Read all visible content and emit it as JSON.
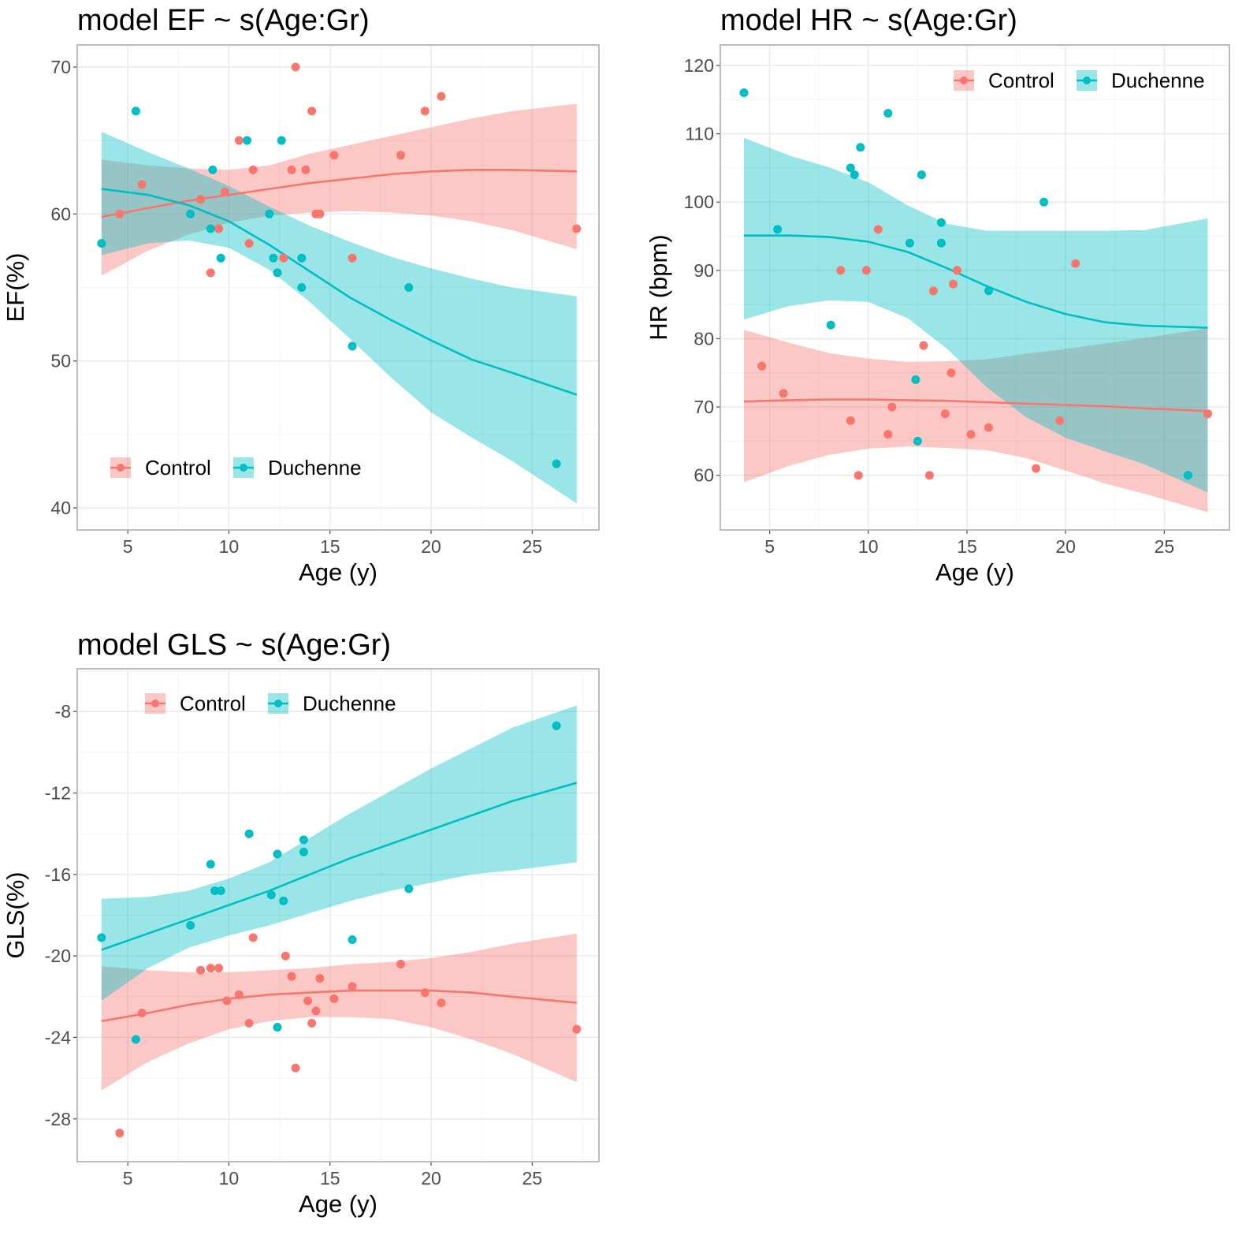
{
  "colors": {
    "control": "#F8766D",
    "duchenne": "#00BFC4",
    "overlap_point": "#938a86"
  },
  "legend": {
    "items": [
      "Control",
      "Duchenne"
    ]
  },
  "chart_data": [
    {
      "id": "ef",
      "type": "scatter",
      "title": "model EF ~ s(Age:Gr)",
      "xlabel": "Age (y)",
      "ylabel": "EF(%)",
      "xlim": [
        2.5,
        28.3
      ],
      "ylim": [
        38.5,
        71.5
      ],
      "xticks": [
        5,
        10,
        15,
        20,
        25
      ],
      "yticks": [
        40,
        50,
        60,
        70
      ],
      "grid": true,
      "legend_position": "bottom-left",
      "series": [
        {
          "name": "Control",
          "points": [
            [
              4.6,
              60
            ],
            [
              5.7,
              62
            ],
            [
              8.6,
              61
            ],
            [
              9.1,
              56
            ],
            [
              9.5,
              59
            ],
            [
              9.8,
              61.5
            ],
            [
              10.5,
              65
            ],
            [
              11,
              58
            ],
            [
              11.2,
              63
            ],
            [
              12.7,
              57
            ],
            [
              13.1,
              63
            ],
            [
              13.3,
              70
            ],
            [
              13.8,
              63
            ],
            [
              14.1,
              67
            ],
            [
              14.3,
              60
            ],
            [
              14.5,
              60
            ],
            [
              15.2,
              64
            ],
            [
              16.1,
              57
            ],
            [
              18.5,
              64
            ],
            [
              19.7,
              67
            ],
            [
              20.5,
              68
            ],
            [
              27.2,
              59
            ]
          ],
          "fit": {
            "x": [
              3.7,
              6,
              8,
              10,
              12,
              14,
              16,
              18,
              20,
              22,
              24,
              27.2
            ],
            "y": [
              59.8,
              60.4,
              60.9,
              61.3,
              61.7,
              62.1,
              62.4,
              62.7,
              62.9,
              63,
              63,
              62.9
            ]
          },
          "ci": {
            "x": [
              3.7,
              6,
              8,
              10,
              12,
              14,
              16,
              18,
              20,
              22,
              24,
              27.2
            ],
            "lower": [
              55.8,
              57.5,
              58.6,
              59.4,
              59.9,
              60.1,
              60.2,
              60.1,
              59.9,
              59.5,
              58.9,
              57.6
            ],
            "upper": [
              63.7,
              63.3,
              63.1,
              63,
              63.3,
              64.1,
              64.7,
              65.3,
              65.9,
              66.5,
              67,
              67.5
            ]
          }
        },
        {
          "name": "Duchenne",
          "points": [
            [
              3.7,
              58
            ],
            [
              5.4,
              67
            ],
            [
              8.1,
              60
            ],
            [
              9.1,
              59
            ],
            [
              9.2,
              63
            ],
            [
              9.6,
              57
            ],
            [
              10.9,
              65
            ],
            [
              12,
              60
            ],
            [
              12.2,
              57
            ],
            [
              12.4,
              56
            ],
            [
              12.6,
              65
            ],
            [
              13.6,
              57
            ],
            [
              13.6,
              55
            ],
            [
              16.1,
              51
            ],
            [
              18.9,
              55
            ],
            [
              26.2,
              43
            ]
          ],
          "fit": {
            "x": [
              3.7,
              6,
              8,
              10,
              12,
              14,
              16,
              18,
              20,
              22,
              24,
              27.2
            ],
            "y": [
              61.7,
              61.3,
              60.6,
              59.5,
              57.9,
              56.1,
              54.3,
              52.8,
              51.4,
              50.1,
              49.2,
              47.7
            ]
          },
          "ci": {
            "x": [
              3.7,
              6,
              8,
              10,
              12,
              14,
              16,
              18,
              20,
              22,
              24,
              27.2
            ],
            "lower": [
              57.2,
              58,
              58.2,
              57.7,
              56.2,
              54,
              51.5,
              48.9,
              46.5,
              44.8,
              43.2,
              40.3
            ],
            "upper": [
              65.6,
              64.2,
              63.1,
              61.9,
              60.5,
              59.2,
              58.1,
              57.1,
              56.3,
              55.6,
              55,
              54.4
            ]
          }
        }
      ]
    },
    {
      "id": "hr",
      "type": "scatter",
      "title": "model HR ~ s(Age:Gr)",
      "xlabel": "Age (y)",
      "ylabel": "HR (bpm)",
      "xlim": [
        2.5,
        28.3
      ],
      "ylim": [
        52,
        123
      ],
      "xticks": [
        5,
        10,
        15,
        20,
        25
      ],
      "yticks": [
        60,
        70,
        80,
        90,
        100,
        110,
        120
      ],
      "grid": true,
      "legend_position": "top-right",
      "series": [
        {
          "name": "Control",
          "points": [
            [
              4.6,
              76
            ],
            [
              5.7,
              72
            ],
            [
              8.6,
              90
            ],
            [
              9.1,
              68
            ],
            [
              9.5,
              60
            ],
            [
              9.9,
              90
            ],
            [
              10.5,
              96
            ],
            [
              11,
              66
            ],
            [
              11.2,
              70
            ],
            [
              12.8,
              79
            ],
            [
              13.1,
              60
            ],
            [
              13.3,
              87
            ],
            [
              13.9,
              69
            ],
            [
              14.2,
              75
            ],
            [
              14.3,
              88
            ],
            [
              14.5,
              90
            ],
            [
              15.2,
              66
            ],
            [
              16.1,
              67
            ],
            [
              18.5,
              61
            ],
            [
              19.7,
              68
            ],
            [
              20.5,
              91
            ],
            [
              27.2,
              69
            ]
          ],
          "fit": {
            "x": [
              3.7,
              6,
              8,
              10,
              12,
              14,
              16,
              18,
              20,
              22,
              24,
              27.2
            ],
            "y": [
              70.8,
              71,
              71.1,
              71.1,
              71,
              70.9,
              70.7,
              70.5,
              70.3,
              70.1,
              69.8,
              69.4
            ]
          },
          "ci": {
            "x": [
              3.7,
              6,
              8,
              10,
              12,
              14,
              16,
              18,
              20,
              22,
              24,
              27.2
            ],
            "lower": [
              59,
              61.4,
              63,
              63.9,
              64.2,
              64,
              63.7,
              62.5,
              60.7,
              58.8,
              57.3,
              54.6
            ],
            "upper": [
              81.3,
              79.4,
              77.9,
              77.1,
              76.6,
              76.7,
              77,
              77.8,
              78.5,
              79.3,
              80.1,
              81.5
            ]
          }
        },
        {
          "name": "Duchenne",
          "points": [
            [
              3.7,
              116
            ],
            [
              5.4,
              96
            ],
            [
              8.1,
              82
            ],
            [
              9.1,
              105
            ],
            [
              9.3,
              104
            ],
            [
              9.6,
              108
            ],
            [
              11,
              113
            ],
            [
              12.1,
              94
            ],
            [
              12.4,
              74
            ],
            [
              12.5,
              65
            ],
            [
              12.7,
              104
            ],
            [
              13.7,
              97
            ],
            [
              13.7,
              94
            ],
            [
              16.1,
              87
            ],
            [
              18.9,
              100
            ],
            [
              26.2,
              60
            ]
          ],
          "fit": {
            "x": [
              3.7,
              6,
              8,
              10,
              12,
              14,
              16,
              18,
              20,
              22,
              24,
              27.2
            ],
            "y": [
              95.1,
              95.1,
              94.9,
              94.2,
              92.7,
              90.3,
              87.7,
              85.4,
              83.6,
              82.4,
              81.9,
              81.6
            ]
          },
          "ci": {
            "x": [
              3.7,
              6,
              8,
              10,
              12,
              14,
              16,
              18,
              20,
              22,
              24,
              27.2
            ],
            "lower": [
              82.8,
              84.8,
              85.6,
              85.4,
              83,
              78.5,
              72.9,
              68.5,
              65.5,
              63.5,
              61.6,
              57.5
            ],
            "upper": [
              109.4,
              106.8,
              105.1,
              102.9,
              99.5,
              96.8,
              95.8,
              95.8,
              95.8,
              95.8,
              95.9,
              97.6
            ]
          }
        }
      ]
    },
    {
      "id": "gls",
      "type": "scatter",
      "title": "model GLS ~ s(Age:Gr)",
      "xlabel": "Age (y)",
      "ylabel": "GLS(%)",
      "xlim": [
        2.5,
        28.3
      ],
      "ylim": [
        -30.1,
        -5.9
      ],
      "xticks": [
        5,
        10,
        15,
        20,
        25
      ],
      "yticks": [
        -8,
        -12,
        -16,
        -20,
        -24,
        -28
      ],
      "grid": true,
      "legend_position": "top-left",
      "series": [
        {
          "name": "Control",
          "points": [
            [
              4.6,
              -28.7
            ],
            [
              5.7,
              -22.8
            ],
            [
              8.6,
              -20.7
            ],
            [
              9.1,
              -20.6
            ],
            [
              9.5,
              -20.6
            ],
            [
              9.9,
              -22.2
            ],
            [
              10.5,
              -21.9
            ],
            [
              11,
              -23.3
            ],
            [
              11.2,
              -19.1
            ],
            [
              12.8,
              -20
            ],
            [
              13.1,
              -21
            ],
            [
              13.3,
              -25.5
            ],
            [
              13.9,
              -22.2
            ],
            [
              14.1,
              -23.3
            ],
            [
              14.3,
              -22.7
            ],
            [
              14.5,
              -21.1
            ],
            [
              15.2,
              -22.1
            ],
            [
              16.1,
              -21.5
            ],
            [
              18.5,
              -20.4
            ],
            [
              19.7,
              -21.8
            ],
            [
              20.5,
              -22.3
            ],
            [
              27.2,
              -23.6
            ]
          ],
          "fit": {
            "x": [
              3.7,
              6,
              8,
              10,
              12,
              14,
              16,
              18,
              20,
              22,
              24,
              27.2
            ],
            "y": [
              -23.2,
              -22.8,
              -22.4,
              -22.1,
              -21.9,
              -21.8,
              -21.7,
              -21.7,
              -21.7,
              -21.8,
              -22,
              -22.3
            ]
          },
          "ci": {
            "x": [
              3.7,
              6,
              8,
              10,
              12,
              14,
              16,
              18,
              20,
              22,
              24,
              27.2
            ],
            "lower": [
              -26.6,
              -25.2,
              -24.3,
              -23.6,
              -23.2,
              -23,
              -23,
              -23.1,
              -23.5,
              -24.1,
              -24.8,
              -26.2
            ],
            "upper": [
              -20.5,
              -20.7,
              -20.8,
              -20.8,
              -20.7,
              -20.6,
              -20.4,
              -20.3,
              -20.1,
              -19.8,
              -19.4,
              -18.9
            ]
          }
        },
        {
          "name": "Duchenne",
          "points": [
            [
              3.7,
              -19.1
            ],
            [
              5.4,
              -24.1
            ],
            [
              8.1,
              -18.5
            ],
            [
              9.1,
              -15.5
            ],
            [
              9.3,
              -16.8
            ],
            [
              9.6,
              -16.8
            ],
            [
              11,
              -14
            ],
            [
              12.1,
              -17
            ],
            [
              12.4,
              -15
            ],
            [
              12.4,
              -23.5
            ],
            [
              12.7,
              -17.3
            ],
            [
              13.7,
              -14.3
            ],
            [
              13.7,
              -14.9
            ],
            [
              16.1,
              -19.2
            ],
            [
              18.9,
              -16.7
            ],
            [
              26.2,
              -8.7
            ]
          ],
          "fit": {
            "x": [
              3.7,
              6,
              8,
              10,
              12,
              14,
              16,
              18,
              20,
              22,
              24,
              27.2
            ],
            "y": [
              -19.7,
              -18.9,
              -18.2,
              -17.5,
              -16.8,
              -16,
              -15.2,
              -14.5,
              -13.8,
              -13.1,
              -12.4,
              -11.5
            ]
          },
          "ci": {
            "x": [
              3.7,
              6,
              8,
              10,
              12,
              14,
              16,
              18,
              20,
              22,
              24,
              27.2
            ],
            "lower": [
              -22.2,
              -20.6,
              -19.6,
              -19,
              -18.5,
              -17.9,
              -17.3,
              -16.8,
              -16.4,
              -16,
              -15.8,
              -15.4
            ],
            "upper": [
              -17.2,
              -17.1,
              -16.8,
              -16.2,
              -15.4,
              -14.2,
              -13,
              -11.9,
              -10.8,
              -9.8,
              -8.8,
              -7.7
            ]
          }
        }
      ]
    }
  ]
}
